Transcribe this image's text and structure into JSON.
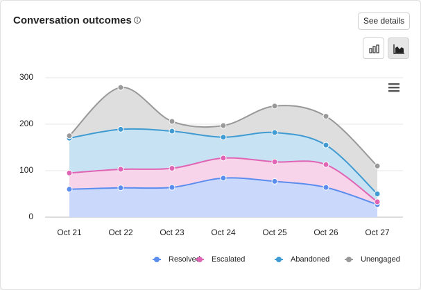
{
  "card": {
    "title": "Conversation outcomes",
    "button": "See details"
  },
  "chart_data": {
    "type": "area",
    "stacked": true,
    "smooth": true,
    "categories": [
      "Oct 21",
      "Oct 22",
      "Oct 23",
      "Oct 24",
      "Oct 25",
      "Oct 26",
      "Oct 27"
    ],
    "series": [
      {
        "name": "Resolved",
        "color": "#5b8def",
        "fill": "#cad8fb",
        "values": [
          60,
          63,
          64,
          84,
          77,
          64,
          27
        ]
      },
      {
        "name": "Escalated",
        "color": "#e064b4",
        "fill": "#f8d4ea",
        "values": [
          35,
          40,
          41,
          43,
          42,
          49,
          6
        ]
      },
      {
        "name": "Abandoned",
        "color": "#3f9bd2",
        "fill": "#c7e2f2",
        "values": [
          75,
          86,
          80,
          45,
          63,
          42,
          17
        ]
      },
      {
        "name": "Unengaged",
        "color": "#999999",
        "fill": "#dedede",
        "values": [
          5,
          90,
          21,
          25,
          57,
          62,
          60
        ]
      }
    ],
    "ylim": [
      0,
      300
    ],
    "yticks": [
      0,
      100,
      200,
      300
    ],
    "grid": true,
    "legend": "bottom"
  }
}
